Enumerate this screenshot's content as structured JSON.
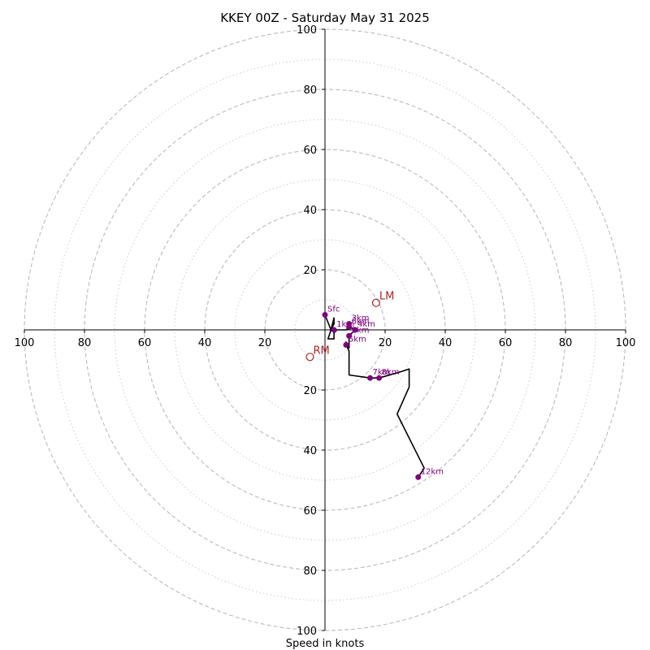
{
  "chart_data": {
    "type": "scatter",
    "title": "KKEY 00Z - Saturday May 31 2025",
    "xlabel": "Speed in knots",
    "ylabel": "",
    "xlim": [
      -100,
      100
    ],
    "ylim": [
      -100,
      100
    ],
    "x_tick_labels": [
      "100",
      "80",
      "60",
      "40",
      "20",
      "20",
      "40",
      "60",
      "80",
      "100"
    ],
    "x_tick_values": [
      -100,
      -80,
      -60,
      -40,
      -20,
      20,
      40,
      60,
      80,
      100
    ],
    "y_tick_labels": [
      "100",
      "80",
      "60",
      "40",
      "20",
      "20",
      "40",
      "60",
      "80",
      "100"
    ],
    "y_tick_values": [
      100,
      80,
      60,
      40,
      20,
      -20,
      -40,
      -60,
      -80,
      -100
    ],
    "range_rings_major": [
      20,
      40,
      60,
      80,
      100
    ],
    "range_rings_minor": [
      10,
      30,
      50,
      70,
      90
    ],
    "colors": {
      "hodograph_line": "#000000",
      "level_points": "#800080",
      "storm_motion": "#b22222",
      "ring": "#bbbbbb"
    },
    "hodograph_trace": [
      [
        0,
        5
      ],
      [
        2,
        0
      ],
      [
        3,
        2
      ],
      [
        3,
        4
      ],
      [
        2,
        0
      ],
      [
        1,
        -3
      ],
      [
        3,
        -3
      ],
      [
        3,
        -1
      ],
      [
        4,
        0
      ],
      [
        7,
        0
      ],
      [
        8,
        1
      ],
      [
        10,
        0
      ],
      [
        8,
        -2
      ],
      [
        8,
        -4
      ],
      [
        8,
        -6
      ],
      [
        7,
        -4
      ],
      [
        7,
        -5
      ],
      [
        8,
        -7
      ],
      [
        8,
        -15
      ],
      [
        15,
        -16
      ],
      [
        18,
        -16
      ],
      [
        25,
        -14
      ],
      [
        28,
        -13
      ],
      [
        28,
        -19
      ],
      [
        24,
        -28
      ],
      [
        33,
        -46
      ],
      [
        31,
        -49
      ]
    ],
    "levels": [
      {
        "label": "Sfc",
        "u": 0,
        "v": 5
      },
      {
        "label": "1km",
        "u": 3,
        "v": 0
      },
      {
        "label": "2km",
        "u": 8,
        "v": -2
      },
      {
        "label": "3km",
        "u": 8,
        "v": 2
      },
      {
        "label": "4km",
        "u": 10,
        "v": 0
      },
      {
        "label": "5km",
        "u": 7,
        "v": -5
      },
      {
        "label": "6km",
        "u": 8,
        "v": 1
      },
      {
        "label": "7km",
        "u": 15,
        "v": -16
      },
      {
        "label": "8km",
        "u": 18,
        "v": -16
      },
      {
        "label": "12km",
        "u": 31,
        "v": -49
      }
    ],
    "storm_motion": [
      {
        "label": "LM",
        "u": 17,
        "v": 9
      },
      {
        "label": "RM",
        "u": -5,
        "v": -9
      }
    ]
  }
}
